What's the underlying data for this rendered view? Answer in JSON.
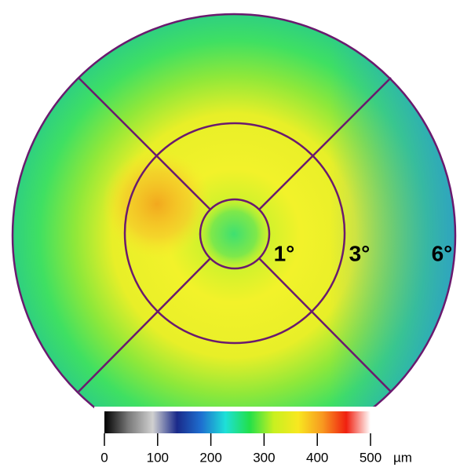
{
  "map": {
    "ring_labels": [
      "1°",
      "3°",
      "6°"
    ],
    "colorbar": {
      "ticks": [
        0,
        100,
        200,
        300,
        400,
        500
      ],
      "unit": "µm",
      "colors": [
        "#000000",
        "#7a7a7a",
        "#d0d0d0",
        "#1a2a8a",
        "#1e6fd0",
        "#1ee0d8",
        "#22e04a",
        "#c8f020",
        "#f8e820",
        "#f89a20",
        "#f02010",
        "#ffffff"
      ]
    }
  }
}
